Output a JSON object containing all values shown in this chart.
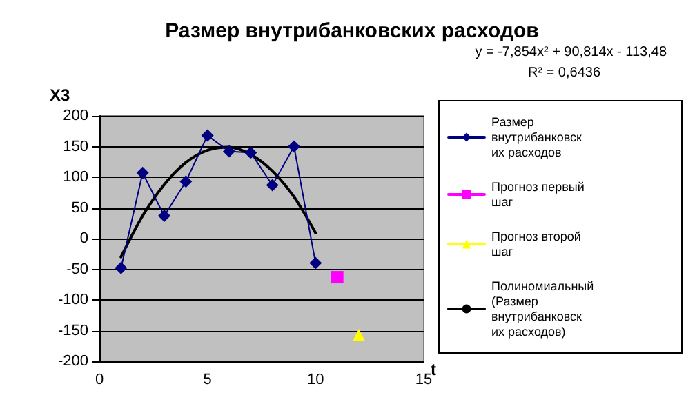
{
  "chart_data": {
    "type": "line",
    "title": "Размер внутрибанковских расходов",
    "xlabel": "t",
    "ylabel": "X3",
    "annotations": [
      "y = -7,854x² + 90,814x - 113,48",
      "R² = 0,6436"
    ],
    "xlim": [
      0,
      15
    ],
    "xticks": [
      0,
      5,
      10,
      15
    ],
    "ylim": [
      -200,
      200
    ],
    "yticks": [
      -200,
      -150,
      -100,
      -50,
      0,
      50,
      100,
      150,
      200
    ],
    "grid": "y",
    "legend": "right",
    "series": [
      {
        "name": "Размер внутрибанковских расходов",
        "color": "#000080",
        "marker": "diamond",
        "x": [
          1,
          2,
          3,
          4,
          5,
          6,
          7,
          8,
          9,
          10
        ],
        "values": [
          -48,
          107,
          37,
          93,
          168,
          142,
          140,
          87,
          150,
          -40
        ]
      },
      {
        "name": "Прогноз первый шаг",
        "color": "#ff00ff",
        "marker": "square",
        "x": [
          11
        ],
        "values": [
          -63
        ]
      },
      {
        "name": "Прогноз второй шаг",
        "color": "#ffff00",
        "marker": "triangle",
        "x": [
          12
        ],
        "values": [
          -157
        ]
      },
      {
        "name": "Полиномиальный (Размер внутрибанковских расходов)",
        "color": "#000000",
        "marker": "none",
        "x": [
          1,
          2,
          3,
          4,
          5,
          6,
          7,
          8,
          9,
          10
        ],
        "values": [
          -30,
          37,
          88,
          124,
          144,
          149,
          137,
          110,
          68,
          9
        ]
      }
    ]
  }
}
